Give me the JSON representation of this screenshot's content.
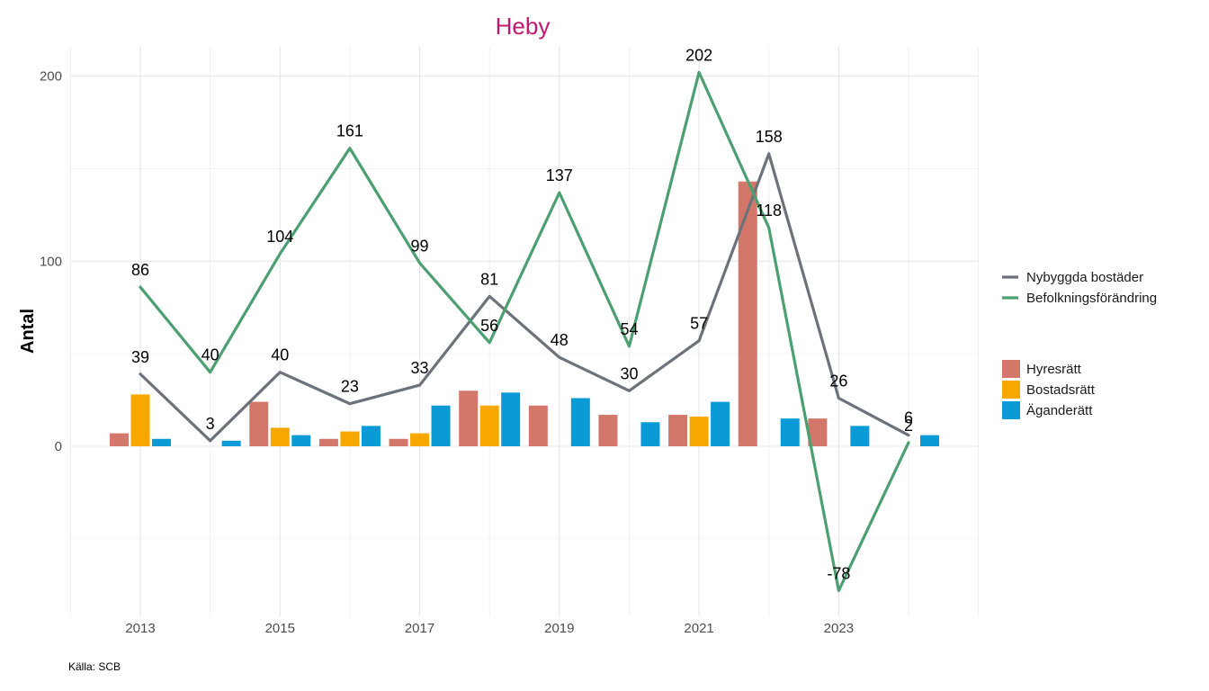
{
  "chart_data": {
    "type": "bar+line",
    "title": "Heby",
    "ylabel": "Antal",
    "xlabel": "",
    "caption": "Källa: SCB",
    "x": [
      2013,
      2014,
      2015,
      2016,
      2017,
      2018,
      2019,
      2020,
      2021,
      2022,
      2023,
      2024
    ],
    "x_tick_labels": [
      "2013",
      "2015",
      "2017",
      "2019",
      "2021",
      "2023"
    ],
    "x_tick_values": [
      2013,
      2015,
      2017,
      2019,
      2021,
      2023
    ],
    "xlim": [
      2012,
      2025
    ],
    "y_ticks": [
      0,
      100,
      200
    ],
    "ylim": [
      -92,
      213
    ],
    "grid": true,
    "bar_series": [
      {
        "name": "Hyresrätt",
        "color": "#d4776b",
        "values": [
          7,
          0,
          24,
          4,
          4,
          30,
          22,
          17,
          17,
          143,
          15,
          0
        ]
      },
      {
        "name": "Bostadsrätt",
        "color": "#f7a800",
        "values": [
          28,
          0,
          10,
          8,
          7,
          22,
          0,
          0,
          16,
          0,
          0,
          0
        ]
      },
      {
        "name": "Äganderätt",
        "color": "#0a9ad6",
        "values": [
          4,
          3,
          6,
          11,
          22,
          29,
          26,
          13,
          24,
          15,
          11,
          6
        ]
      }
    ],
    "line_series": [
      {
        "name": "Nybyggda bostäder",
        "color": "#6c727a",
        "values": [
          39,
          3,
          40,
          23,
          33,
          81,
          48,
          30,
          57,
          158,
          26,
          6
        ]
      },
      {
        "name": "Befolkningsförändring",
        "color": "#4c9f70",
        "values": [
          86,
          40,
          104,
          161,
          99,
          56,
          137,
          54,
          202,
          118,
          -78,
          2
        ]
      }
    ],
    "legend_lines": [
      "Nybyggda bostäder",
      "Befolkningsförändring"
    ],
    "legend_bars": [
      "Hyresrätt",
      "Bostadsrätt",
      "Äganderätt"
    ],
    "legend_position": "right"
  }
}
